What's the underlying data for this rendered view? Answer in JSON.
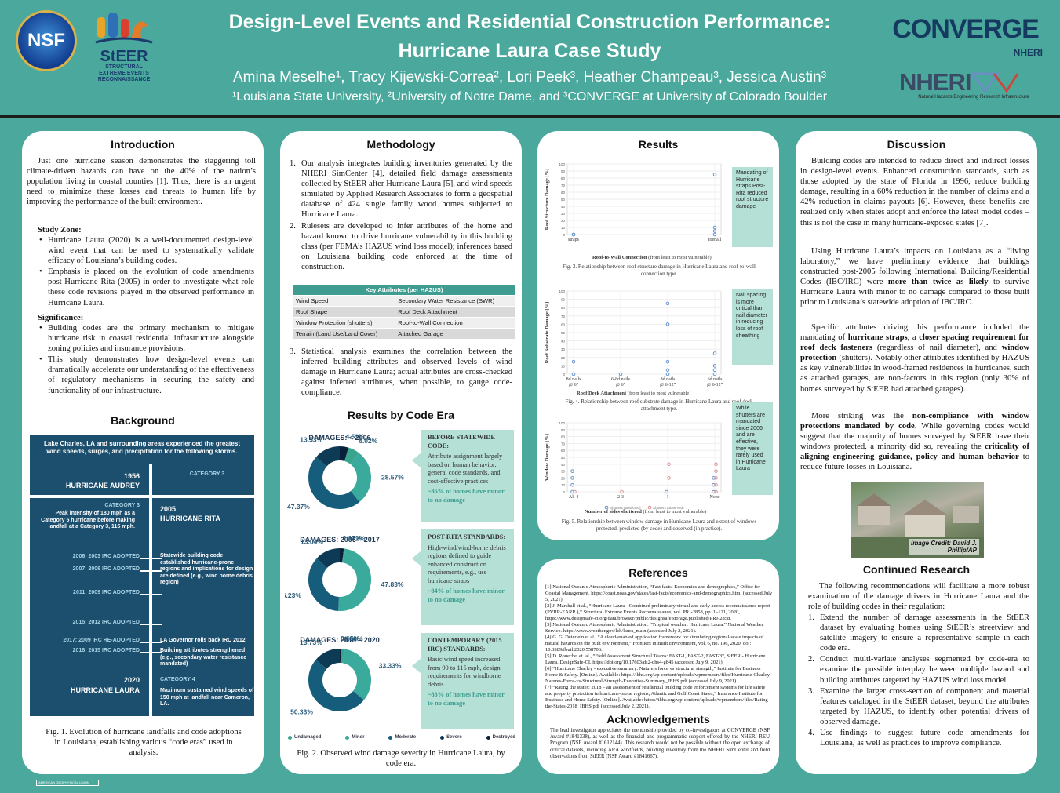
{
  "header": {
    "title_line1": "Design-Level Events and Residential Construction Performance:",
    "title_line2": "Hurricane Laura Case Study",
    "authors": "Amina Meselhe¹, Tracy Kijewski-Correa², Lori Peek³, Heather Champeau³, Jessica Austin³",
    "affiliations": "¹Louisiana State University, ²University of Notre Dame, and ³CONVERGE at University of Colorado Boulder",
    "logo_nsf": "NSF",
    "logo_steer_word": "StEER",
    "logo_steer_sub1": "STRUCTURAL",
    "logo_steer_sub2": "EXTREME EVENTS",
    "logo_steer_sub3": "RECONNAISSANCE",
    "logo_converge": "CONVERGE",
    "logo_converge_sub": "NHERI",
    "logo_nheri": "NHERI",
    "logo_nheri_sub": "Natural Hazards Engineering Research Infrastructure"
  },
  "intro": {
    "heading": "Introduction",
    "para": "Just one hurricane season demonstrates the staggering toll climate-driven hazards can have on the 40% of the nation’s population living in coastal counties [1]. Thus, there is an urgent need to minimize these losses and threats to human life by improving the performance of the built environment.",
    "study_zone_label": "Study Zone:",
    "study_zone": [
      "Hurricane Laura (2020) is a well-documented design-level wind event that can be used to systematically validate efficacy of Louisiana’s building codes.",
      "Emphasis is placed on the evolution of code amendments post-Hurricane Rita (2005) in order to investigate what role these code revisions played in the observed performance in Hurricane Laura."
    ],
    "significance_label": "Significance:",
    "significance": [
      "Building codes are the primary mechanism to mitigate hurricane risk in coastal residential infrastructure alongside zoning policies and insurance provisions.",
      "This study demonstrates how design-level events can dramatically accelerate our understanding of the effectiveness of regulatory mechanisms in securing the safety and functionality of our infrastructure."
    ]
  },
  "background": {
    "heading": "Background",
    "intro": "Lake Charles, LA and surrounding areas experienced the greatest wind speeds, surges, and precipitation for the following storms.",
    "audrey_year": "1956",
    "audrey_name": "HURRICANE AUDREY",
    "audrey_cat": "CATEGORY 3",
    "rita_cat": "CATEGORY 3",
    "rita_desc": "Peak intensity of 180 mph as a Category 5 hurricane before making landfall at a Category 3, 115 mph.",
    "rita_year": "2005",
    "rita_name": "HURRICANE RITA",
    "irc2003": "2006: 2003 IRC ADOPTED",
    "irc2003_desc": "Statewide building code established hurricane-prone regions and implications for design are defined (e.g., wind borne debris region)",
    "irc2006": "2007: 2006 IRC ADOPTED",
    "irc2009": "2011: 2009 IRC ADOPTED",
    "irc2012": "2015: 2012 IRC ADOPTED",
    "irc2009re": "2017: 2009 IRC RE-ADOPTED",
    "rollback": "LA Governor rolls back IRC 2012",
    "irc2015": "2018: 2015 IRC ADOPTED",
    "irc2015_desc": "Building attributes strengthened (e.g., secondary water resistance mandated)",
    "laura_year": "2020",
    "laura_name": "HURRICANE LAURA",
    "laura_cat": "CATEGORY 4",
    "laura_desc": "Maximum sustained wind speeds of 150 mph at landfall near Cameron, LA.",
    "caption": "Fig. 1. Evolution of hurricane landfalls and code adoptions in Louisiana, establishing various “code eras” used in analysis."
  },
  "methodology": {
    "heading": "Methodology",
    "items": [
      "Our analysis integrates building inventories generated by the NHERI SimCenter [4], detailed field damage assessments collected by StEER after Hurricane Laura [5], and wind speeds simulated by Applied Research Associates to form a geospatial database of 424 single family wood homes subjected to Hurricane Laura.",
      "Rulesets are developed to infer attributes of the home and hazard known to drive hurricane vulnerability in this building class (per FEMA’s HAZUS wind loss model); inferences based on Louisiana building code enforced at the time of construction.",
      "Statistical analysis examines the correlation between the inferred building attributes and observed levels of wind damage in Hurricane Laura; actual attributes are cross-checked against inferred attributes, when possible, to gauge code-compliance."
    ],
    "table_title": "Key Attributes (per HAZUS)",
    "table_rows": [
      [
        "Wind Speed",
        "Secondary Water Resistance (SWR)"
      ],
      [
        "Roof Shape",
        "Roof Deck Attachment"
      ],
      [
        "Window Protection (shutters)",
        "Roof-to-Wall Connection"
      ],
      [
        "Terrain (Land Use/Land Cover)",
        "Attached Garage"
      ]
    ]
  },
  "code_era": {
    "heading": "Results by Code Era",
    "donuts": [
      {
        "title": "DAMAGES: < 2006",
        "values": [
          6.02,
          28.57,
          47.37,
          13.53,
          4.51
        ],
        "labels": [
          "6.02%",
          "28.57%",
          "47.37%",
          "13.53%",
          "4.51%"
        ]
      },
      {
        "title": "DAMAGES: 2006 – 2017",
        "values": [
          0.72,
          47.83,
          36.23,
          13.04,
          2.17
        ],
        "labels": [
          "0.72%",
          "47.83%",
          "36.23%",
          "13.04%",
          "2.17%"
        ]
      },
      {
        "title": "DAMAGES: 2018 – 2020",
        "values": [
          1.96,
          33.33,
          50.33,
          13.73,
          0.65
        ],
        "labels": [
          "1.96%",
          "33.33%",
          "50.33%",
          "13.73%",
          "0.65%"
        ]
      }
    ],
    "boxes": [
      {
        "head": "BEFORE STATEWIDE CODE:",
        "body": "Attribute assignment largely based on human behavior, general code standards, and cost-effective practices",
        "pct": "~36% of homes have minor to no damage"
      },
      {
        "head": "POST-RITA STANDARDS:",
        "body": "High-wind/wind-borne debris regions defined to guide enhanced construction requirements, e.g., use hurricane straps",
        "pct": "~84% of homes have minor to no damage"
      },
      {
        "head": "CONTEMPORARY (2015 IRC) STANDARDS:",
        "body": "Basic wind speed increased from 90 to 115 mph, design requirements for windborne debris",
        "pct": "~83% of homes have minor to no damage"
      }
    ],
    "legend": [
      "Undamaged",
      "Minor",
      "Moderate",
      "Severe",
      "Destroyed"
    ],
    "colors": {
      "undamaged": "#3aa58f",
      "minor": "#3aaa9c",
      "moderate": "#155d7a",
      "severe": "#0d3a55",
      "destroyed": "#0b1f3a"
    },
    "caption": "Fig. 2. Observed wind damage severity in Hurricane Laura, by code era."
  },
  "results": {
    "heading": "Results",
    "fig3_note": "Mandating of Hurricane straps Post-Rita reduced roof structure damage",
    "fig3_ylabel": "Roof Structure Damage [%]",
    "fig3_xlabel": "Roof-to-Wall Connection",
    "fig3_xlabel2": "(from least to most vulnerable)",
    "fig3_cats": [
      "straps",
      "toenail"
    ],
    "fig3_caption": "Fig. 3. Relationship between roof structure damage in Hurricane Laura and roof-to-wall connection type.",
    "fig4_note": "Nail spacing is more critical than nail diameter in reducing loss of roof sheathing",
    "fig4_ylabel": "Roof Substrate Damage [%]",
    "fig4_xlabel": "Roof Deck Attachment",
    "fig4_xlabel2": "(from least to most vulnerable)",
    "fig4_cats": [
      "8d nails @ 6”",
      "6-8d nails @ 6”",
      "8d nails @ 6-12”",
      "6d nails @ 6-12”"
    ],
    "fig4_caption": "Fig. 4. Relationship between roof substrate damage in Hurricane Laura and roof deck attachment type.",
    "fig5_note": "While shutters are mandated since 2006 and are effective, they were rarely used in Hurricane Laura",
    "fig5_ylabel": "Window Damage [%]",
    "fig5_xlabel": "Number of sides shuttered",
    "fig5_xlabel2": "(from least to most vulnerable)",
    "fig5_cats": [
      "All 4",
      "2-3",
      "1",
      "None"
    ],
    "fig5_legend": [
      "Shutters (predicted)",
      "Shutters (observed)"
    ],
    "fig5_caption": "Fig. 5. Relationship between window damage in Hurricane Laura and extent of windows protected, predicted (by code) and observed (in practice).",
    "yticks": [
      "0",
      "10",
      "20",
      "30",
      "40",
      "50",
      "60",
      "70",
      "80",
      "90",
      "100"
    ]
  },
  "chart_data": [
    {
      "type": "scatter",
      "title": "",
      "xlabel": "Roof-to-Wall Connection (from least to most vulnerable)",
      "ylabel": "Roof Structure Damage [%]",
      "ylim": [
        0,
        100
      ],
      "categories": [
        "straps",
        "toenail"
      ],
      "series": [
        {
          "values": [
            [
              0,
              0
            ],
            [
              0,
              0
            ],
            [
              1,
              85
            ],
            [
              1,
              10
            ],
            [
              1,
              5
            ],
            [
              1,
              0
            ]
          ]
        }
      ]
    },
    {
      "type": "scatter",
      "title": "",
      "xlabel": "Roof Deck Attachment (from least to most vulnerable)",
      "ylabel": "Roof Substrate Damage [%]",
      "ylim": [
        0,
        100
      ],
      "categories": [
        "8d nails @ 6”",
        "6-8d nails @ 6”",
        "8d nails @ 6-12”",
        "6d nails @ 6-12”"
      ],
      "series": [
        {
          "values": [
            [
              0,
              15
            ],
            [
              0,
              0
            ],
            [
              1,
              0
            ],
            [
              2,
              85
            ],
            [
              2,
              60
            ],
            [
              2,
              15
            ],
            [
              2,
              5
            ],
            [
              2,
              0
            ],
            [
              3,
              25
            ],
            [
              3,
              10
            ],
            [
              3,
              5
            ],
            [
              3,
              0
            ]
          ]
        }
      ]
    },
    {
      "type": "scatter",
      "title": "",
      "xlabel": "Number of sides shuttered (from least to most vulnerable)",
      "ylabel": "Window Damage [%]",
      "ylim": [
        0,
        100
      ],
      "categories": [
        "All 4",
        "2-3",
        "1",
        "None"
      ],
      "series": [
        {
          "name": "Shutters (predicted)",
          "values": [
            [
              0,
              30
            ],
            [
              0,
              20
            ],
            [
              0,
              10
            ],
            [
              0,
              0
            ],
            [
              2,
              0
            ],
            [
              3,
              20
            ],
            [
              3,
              10
            ],
            [
              3,
              0
            ]
          ]
        },
        {
          "name": "Shutters (observed)",
          "values": [
            [
              0,
              0
            ],
            [
              1,
              0
            ],
            [
              2,
              40
            ],
            [
              2,
              20
            ],
            [
              3,
              40
            ],
            [
              3,
              30
            ],
            [
              3,
              20
            ],
            [
              3,
              10
            ],
            [
              3,
              0
            ]
          ]
        }
      ]
    }
  ],
  "references": {
    "heading": "References",
    "items": [
      "[1]  National Oceanic Atmospheric Administration, “Fast facts: Economics and demographics,” Office for Coastal Management, https://coast.noaa.gov/states/fast-facts/economics-and-demographics.html (accessed July 5, 2021).",
      "[2]  J. Marshall et al., “Hurricane Laura - Combined preliminary virtual and early access reconnaissance report (PVRR-EARR.),” Structural Extreme Events Reconnaissance, vol. PRJ-2858, pp. 1–121, 2020, https://www.designsafe-ci.org/data/browser/public/designsafe.storage.published/PRJ-2858.",
      "[3]  National Oceanic Atmospheric Administration. “Tropical weather: Hurricane Laura.” National Weather Service. https://www.weather.gov/lch/laura_main (accessed July 2, 2021).",
      "[4]  G. G. Deierlein et al., “A cloud-enabled application framework for simulating regional-scale impacts of natural hazards on the built environment,” Frontiers in Built Environment, vol. 6, no. 196, 2020, doi: 10.3389/fbuil.2020.558706.",
      "[5]  D. Roueche, et. al., “Field Assessment Structural Teams: FAST-1, FAST-2, FAST-3”, StEER - Hurricane Laura. DesignSafe-CI. https://doi.org/10.17603/ds2-dhs4-g845 (accessed July 9, 2021).",
      "[6]  “Hurricane Charley - executive summary: Nature’s force vs structural strength,” Institute for Business Home & Safety. [Online]. Available: https://ibhs.org/wp-content/uploads/wpmembers/files/Hurricane-Charley-Natures-Force-vs-Structural-Strength-Executive-Summary_IBHS.pdf (accessed July 9, 2021).",
      "[7]  “Rating the states: 2018 – an assessment of residential building code enforcement systems for life safety and property protection in hurricane-prone regions, Atlantic and Gulf Coast States,” Insurance Institute for Business and Home Safety. [Online]. Available: https://ibhs.org/wp-content/uploads/wpmembers/files/Rating-the-States-2018_IBHS.pdf (accessed July 2, 2021)."
    ]
  },
  "acknowledgements": {
    "heading": "Acknowledgements",
    "text": "The lead investigator appreciates the mentorship provided by co-investigators at CONVERGE (NSF Award #1841338), as well as the financial and programmatic support offered by the NHERI REU Program (NSF Award #1612144). This research would not be possible without the open exchange of critical datasets, including ARA windfields, building inventory from the NHERI SimCenter and field observations from StEER (NSF Award #1841667)."
  },
  "discussion": {
    "heading": "Discussion",
    "p1": "Building codes are intended to reduce direct and indirect losses in design-level events. Enhanced construction standards, such as those adopted by the state of Florida in 1996, reduce building damage, resulting in a 60% reduction in the number of claims and a 42% reduction in claims payouts [6]. However, these benefits are realized only when states adopt and enforce the latest model codes – this is not the case in many hurricane-exposed states [7].",
    "p2a": "Using Hurricane Laura’s impacts on Louisiana as a “living laboratory,” we have preliminary evidence that buildings constructed post-2005 following International Building/Residential Codes (IBC/IRC) were ",
    "p2b": "more than twice as likely",
    "p2c": " to survive Hurricane Laura with minor to no damage compared to those built prior to Louisiana’s statewide adoption of IBC/IRC.",
    "p3a": "Specific attributes driving this performance included the mandating of ",
    "p3b": "hurricane straps",
    "p3c": ", a ",
    "p3d": "closer spacing requirement for roof deck fasteners",
    "p3e": " (regardless of nail diameter), and ",
    "p3f": "window protection",
    "p3g": " (shutters). Notably other attributes identified by HAZUS as key vulnerabilities in wood-framed residences in hurricanes, such as attached garages, are non-factors in this region (only 30% of homes surveyed by StEER had attached garages).",
    "p4a": "More striking was the ",
    "p4b": "non-compliance with window protections mandated by code",
    "p4c": ". While governing codes would suggest that the majority of homes surveyed by StEER have their windows protected, a minority did so, revealing the ",
    "p4d": "criticality of aligning engineering guidance, policy and human behavior",
    "p4e": " to reduce future losses in Louisiana.",
    "photo_credit_1": "Image Credit: David J.",
    "photo_credit_2": "Phillip/AP"
  },
  "continued": {
    "heading": "Continued Research",
    "intro": "The following recommendations will facilitate a more robust examination of the damage drivers in Hurricane Laura and the role of building codes in their regulation:",
    "items": [
      "Extend the number of damage assessments in the StEER dataset by evaluating homes using StEER’s streetview and satellite imagery to ensure a representative sample in each code era.",
      "Conduct multi-variate analyses segmented by code-era to examine the possible interplay between multiple hazard and building attributes targeted by HAZUS wind loss model.",
      "Examine the larger cross-section of component and material features cataloged in the StEER dataset, beyond the attributes targeted by HAZUS, to identify other potential drivers of observed damage.",
      "Use findings to suggest future code amendments for Louisiana, as well as practices to improve compliance."
    ]
  },
  "footer": {
    "tag": "AMERICAN GEOPHYSICAL UNION"
  }
}
